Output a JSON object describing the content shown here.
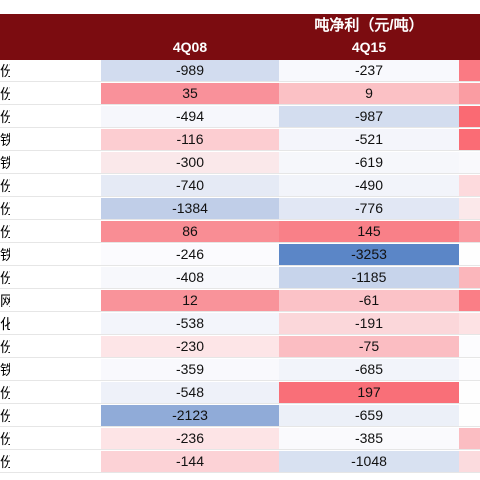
{
  "header": {
    "title": "吨净利（元/吨）",
    "columns": [
      "4Q08",
      "4Q15"
    ]
  },
  "chart_data": {
    "type": "table",
    "title": "吨净利（元/吨）",
    "columns": [
      "4Q08",
      "4Q15"
    ],
    "row_label_fragments": [
      "份",
      "份",
      "份",
      "铁",
      "铁",
      "份",
      "份",
      "份",
      "铁",
      "份",
      "网",
      "化",
      "份",
      "铁",
      "份",
      "份",
      "份",
      "份"
    ],
    "rows": [
      [
        -989,
        -237
      ],
      [
        35,
        9
      ],
      [
        -494,
        -987
      ],
      [
        -116,
        -521
      ],
      [
        -300,
        -619
      ],
      [
        -740,
        -490
      ],
      [
        -1384,
        -776
      ],
      [
        86,
        145
      ],
      [
        -246,
        -3253
      ],
      [
        -408,
        -1185
      ],
      [
        12,
        -61
      ],
      [
        -538,
        -191
      ],
      [
        -230,
        -75
      ],
      [
        -359,
        -685
      ],
      [
        -548,
        197
      ],
      [
        -2123,
        -659
      ],
      [
        -236,
        -385
      ],
      [
        -144,
        -1048
      ]
    ],
    "cell_colors": [
      [
        "#d2dcef",
        "#f8f9fd"
      ],
      [
        "#f9919a",
        "#fbc1c5"
      ],
      [
        "#f6f7fc",
        "#d3ddef"
      ],
      [
        "#fccdd1",
        "#f4f5fb"
      ],
      [
        "#fae8ea",
        "#f6f7fb"
      ],
      [
        "#e5eaf5",
        "#f2f4fa"
      ],
      [
        "#c0cee8",
        "#e1e7f4"
      ],
      [
        "#f98d94",
        "#f98088"
      ],
      [
        "#fbfbfe",
        "#5b86c7"
      ],
      [
        "#f7f8fc",
        "#c7d4eb"
      ],
      [
        "#f9939a",
        "#fbc2c7"
      ],
      [
        "#f3f5fb",
        "#fbd7da"
      ],
      [
        "#fde5e7",
        "#fbbdc2"
      ],
      [
        "#f9f9fd",
        "#f2f4fa"
      ],
      [
        "#eef1f9",
        "#f96f78"
      ],
      [
        "#90abd8",
        "#ecf0f8"
      ],
      [
        "#fde4e6",
        "#fafafd"
      ],
      [
        "#fcd2d6",
        "#d8e1f1"
      ]
    ],
    "edge_colors": [
      "#fa7a83",
      "#fa9ca2",
      "#fa6a73",
      "#fa6c75",
      "#f9f9fc",
      "#fddadd",
      "#fbe8ea",
      "#fa9aa1",
      "#fefefe",
      "#fbb6bb",
      "#fa7e86",
      "#fde2e4",
      "#fcfcfe",
      "#fcfcfe",
      "#fefefe",
      "#fefefe",
      "#fbbdc2",
      "#fbdbde"
    ]
  }
}
